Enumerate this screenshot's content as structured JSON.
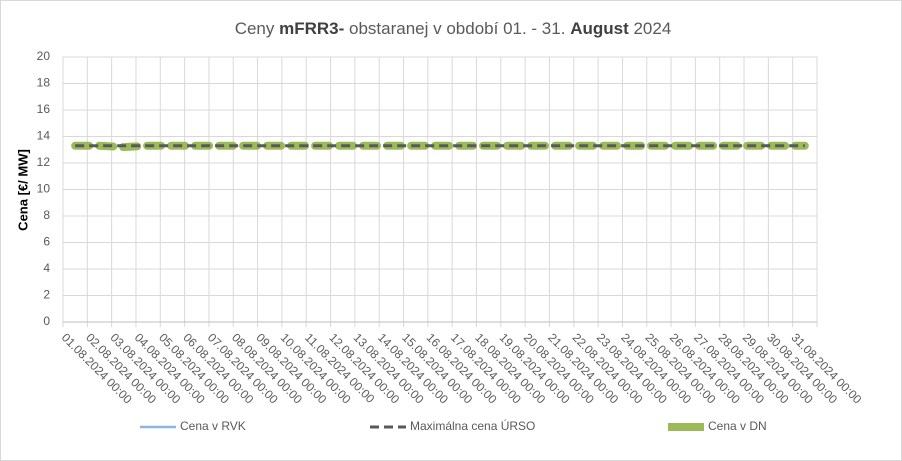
{
  "chart_data": {
    "type": "line",
    "title": [
      "Ceny",
      "mFRR3-",
      "obstaranej v období 01. - 31.",
      "August",
      "2024"
    ],
    "title_bold": [
      false,
      true,
      false,
      true,
      false
    ],
    "ylabel": "Cena [€/ MW]",
    "categories": [
      "01.08.2024 00:00",
      "02.08.2024 00:00",
      "03.08.2024 00:00",
      "04.08.2024 00:00",
      "05.08.2024 00:00",
      "06.08.2024 00:00",
      "07.08.2024 00:00",
      "08.08.2024 00:00",
      "09.08.2024 00:00",
      "10.08.2024 00:00",
      "11.08.2024 00:00",
      "12.08.2024 00:00",
      "13.08.2024 00:00",
      "14.08.2024 00:00",
      "15.08.2024 00:00",
      "16.08.2024 00:00",
      "17.08.2024 00:00",
      "18.08.2024 00:00",
      "19.08.2024 00:00",
      "20.08.2024 00:00",
      "21.08.2024 00:00",
      "22.08.2024 00:00",
      "23.08.2024 00:00",
      "24.08.2024 00:00",
      "25.08.2024 00:00",
      "26.08.2024 00:00",
      "27.08.2024 00:00",
      "28.08.2024 00:00",
      "29.08.2024 00:00",
      "30.08.2024 00:00",
      "31.08.2024 00:00"
    ],
    "series": [
      {
        "name": "Cena v RVK",
        "color": "#8eb4e3",
        "dash": "solid",
        "width": 2.5,
        "values": [
          null,
          null,
          null,
          null,
          null,
          null,
          null,
          null,
          null,
          null,
          null,
          null,
          null,
          null,
          null,
          null,
          null,
          null,
          null,
          null,
          null,
          null,
          null,
          null,
          null,
          null,
          null,
          null,
          null,
          null,
          null
        ]
      },
      {
        "name": "Maximálna cena ÚRSO",
        "color": "#595959",
        "dash": "dashed",
        "width": 3,
        "values": [
          13.3,
          13.3,
          13.3,
          13.3,
          13.3,
          13.3,
          13.3,
          13.3,
          13.3,
          13.3,
          13.3,
          13.3,
          13.3,
          13.3,
          13.3,
          13.3,
          13.3,
          13.3,
          13.3,
          13.3,
          13.3,
          13.3,
          13.3,
          13.3,
          13.3,
          13.3,
          13.3,
          13.3,
          13.3,
          13.3,
          13.3
        ]
      },
      {
        "name": "Cena v DN",
        "color": "#9bbb59",
        "dash": "thick-dashed",
        "width": 8,
        "values": [
          13.3,
          13.3,
          13.2,
          13.3,
          13.3,
          13.3,
          13.3,
          13.3,
          13.3,
          13.3,
          13.3,
          13.3,
          13.3,
          13.3,
          13.3,
          13.3,
          13.3,
          13.3,
          13.3,
          13.3,
          13.3,
          13.3,
          13.3,
          13.3,
          13.3,
          13.3,
          13.3,
          13.3,
          13.3,
          13.3,
          13.3
        ]
      }
    ],
    "ylim": [
      0,
      20
    ],
    "yticks": [
      0,
      2,
      4,
      6,
      8,
      10,
      12,
      14,
      16,
      18,
      20
    ],
    "grid": true,
    "legend": "bottom"
  }
}
